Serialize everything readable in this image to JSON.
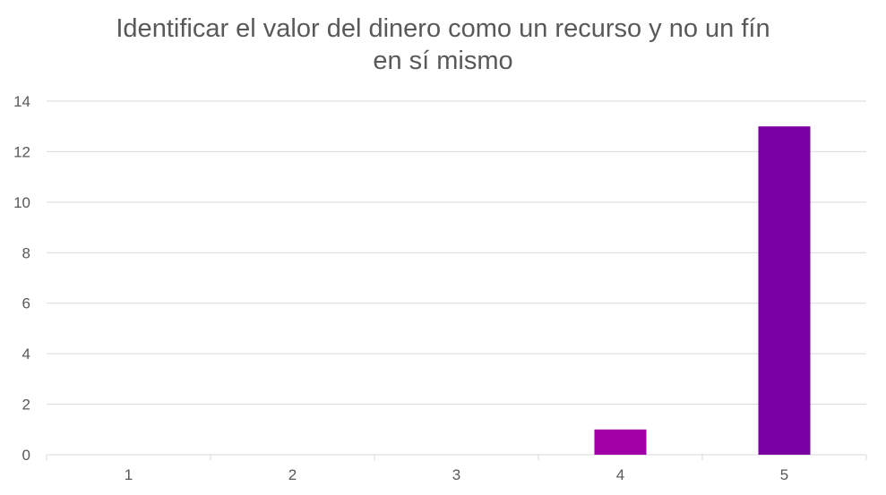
{
  "chart_data": {
    "type": "bar",
    "title_lines": [
      "Identificar el valor del dinero como un recurso y no un fín",
      "en sí mismo"
    ],
    "categories": [
      "1",
      "2",
      "3",
      "4",
      "5"
    ],
    "values": [
      0,
      0,
      0,
      1,
      13
    ],
    "bar_colors": [
      "#A200A2",
      "#A200A2",
      "#A200A2",
      "#A000A6",
      "#7B00A3"
    ],
    "ylim": [
      0,
      14
    ],
    "yticks": [
      0,
      2,
      4,
      6,
      8,
      10,
      12,
      14
    ],
    "grid": true,
    "gridline_color": "#D9D9D9",
    "xlabel": "",
    "ylabel": ""
  }
}
